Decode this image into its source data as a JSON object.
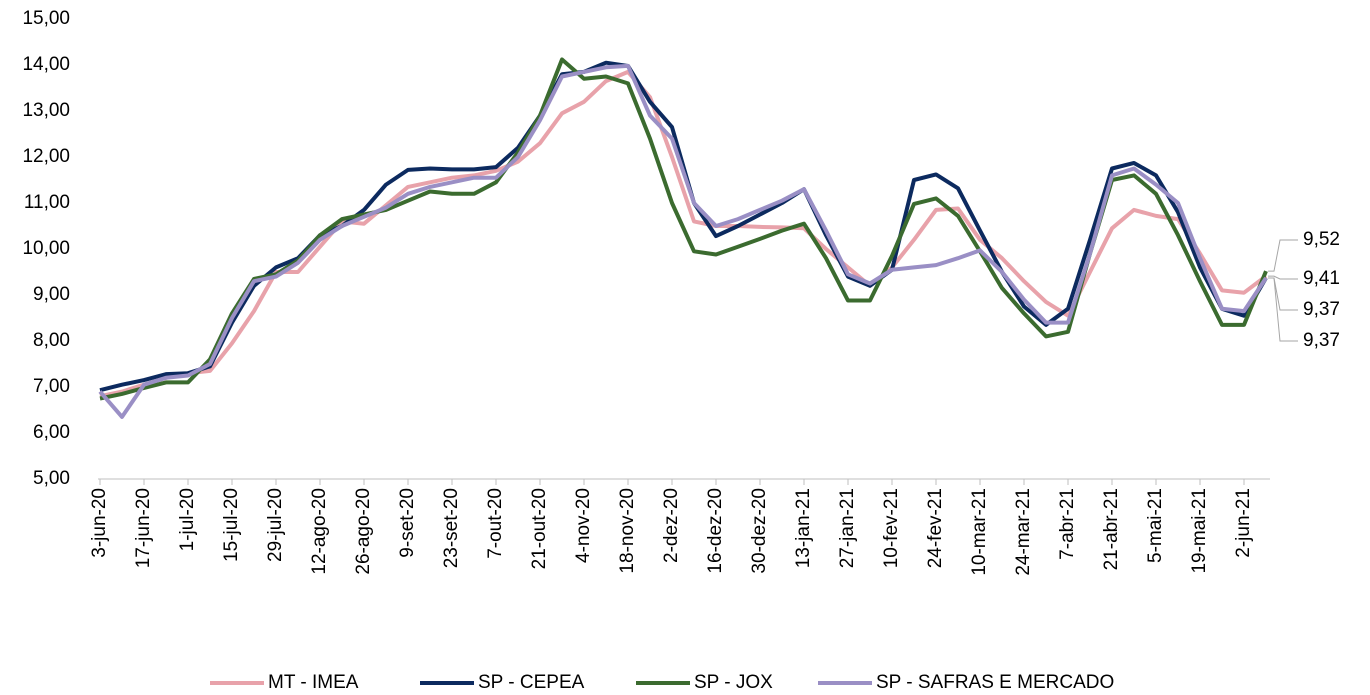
{
  "chart_data": {
    "type": "line",
    "categories": [
      "3-jun-20",
      null,
      "17-jun-20",
      null,
      "1-jul-20",
      null,
      "15-jul-20",
      null,
      "29-jul-20",
      null,
      "12-ago-20",
      null,
      "26-ago-20",
      null,
      "9-set-20",
      null,
      "23-set-20",
      null,
      "7-out-20",
      null,
      "21-out-20",
      null,
      "4-nov-20",
      null,
      "18-nov-20",
      null,
      "2-dez-20",
      null,
      "16-dez-20",
      null,
      "30-dez-20",
      null,
      "13-jan-21",
      null,
      "27-jan-21",
      null,
      "10-fev-21",
      null,
      "24-fev-21",
      null,
      "10-mar-21",
      null,
      "24-mar-21",
      null,
      "7-abr-21",
      null,
      "21-abr-21",
      null,
      "5-mai-21",
      null,
      "19-mai-21",
      null,
      "2-jun-21",
      null
    ],
    "series": [
      {
        "name": "MT - IMEA",
        "color": "#e8a2aa",
        "values": [
          6.8,
          6.9,
          7.05,
          7.2,
          7.3,
          7.35,
          7.95,
          8.65,
          9.5,
          9.5,
          10.05,
          10.6,
          10.55,
          10.95,
          11.35,
          11.45,
          11.55,
          11.6,
          11.7,
          11.9,
          12.3,
          12.95,
          13.2,
          13.65,
          13.85,
          13.3,
          12.0,
          10.6,
          10.5,
          10.5,
          10.48,
          10.47,
          10.45,
          10.0,
          9.6,
          9.2,
          9.6,
          10.2,
          10.85,
          10.88,
          10.2,
          9.8,
          9.3,
          8.85,
          8.55,
          9.5,
          10.45,
          10.85,
          10.72,
          10.65,
          9.9,
          9.1,
          9.05,
          9.41
        ],
        "value_labels": [
          null,
          null,
          null,
          null,
          null,
          null,
          null,
          null,
          null,
          null,
          null,
          null,
          null,
          null,
          null,
          null,
          null,
          null,
          null,
          null,
          null,
          null,
          null,
          null,
          null,
          null,
          null,
          null,
          null,
          null,
          null,
          null,
          null,
          null,
          null,
          null,
          null,
          null,
          null,
          null,
          null,
          null,
          null,
          null,
          null,
          null,
          null,
          null,
          null,
          null,
          null,
          null,
          null,
          "9,41"
        ]
      },
      {
        "name": "SP - CEPEA",
        "color": "#0c2a5f",
        "values": [
          6.93,
          7.05,
          7.15,
          7.28,
          7.3,
          7.45,
          8.4,
          9.2,
          9.6,
          9.8,
          10.3,
          10.5,
          10.85,
          11.4,
          11.72,
          11.75,
          11.73,
          11.73,
          11.78,
          12.2,
          12.9,
          13.8,
          13.85,
          14.05,
          13.98,
          13.2,
          12.65,
          11.0,
          10.28,
          10.5,
          10.75,
          11.0,
          11.3,
          10.3,
          9.4,
          9.2,
          9.55,
          11.5,
          11.62,
          11.32,
          10.4,
          9.5,
          8.75,
          8.35,
          8.7,
          10.2,
          11.75,
          11.87,
          11.6,
          10.8,
          9.6,
          8.7,
          8.55,
          9.37
        ],
        "value_labels": [
          null,
          null,
          null,
          null,
          null,
          null,
          null,
          null,
          null,
          null,
          null,
          null,
          null,
          null,
          null,
          null,
          null,
          null,
          null,
          null,
          null,
          null,
          null,
          null,
          null,
          null,
          null,
          null,
          null,
          null,
          null,
          null,
          null,
          null,
          null,
          null,
          null,
          null,
          null,
          null,
          null,
          null,
          null,
          null,
          null,
          null,
          null,
          null,
          null,
          null,
          null,
          null,
          null,
          "9,37"
        ]
      },
      {
        "name": "SP - JOX",
        "color": "#3b6b2f",
        "values": [
          6.75,
          6.85,
          6.98,
          7.1,
          7.1,
          7.6,
          8.6,
          9.35,
          9.45,
          9.75,
          10.3,
          10.65,
          10.75,
          10.85,
          11.05,
          11.25,
          11.2,
          11.2,
          11.45,
          12.1,
          12.9,
          14.12,
          13.7,
          13.75,
          13.6,
          12.4,
          11.0,
          9.95,
          9.88,
          10.05,
          10.22,
          10.4,
          10.55,
          9.8,
          8.88,
          8.88,
          9.85,
          10.98,
          11.1,
          10.72,
          9.95,
          9.15,
          8.6,
          8.1,
          8.2,
          9.9,
          11.5,
          11.6,
          11.2,
          10.3,
          9.3,
          8.35,
          8.35,
          9.52
        ],
        "value_labels": [
          null,
          null,
          null,
          null,
          null,
          null,
          null,
          null,
          null,
          null,
          null,
          null,
          null,
          null,
          null,
          null,
          null,
          null,
          null,
          null,
          null,
          null,
          null,
          null,
          null,
          null,
          null,
          null,
          null,
          null,
          null,
          null,
          null,
          null,
          null,
          null,
          null,
          null,
          null,
          null,
          null,
          null,
          null,
          null,
          null,
          null,
          null,
          null,
          null,
          null,
          null,
          null,
          null,
          "9,52"
        ]
      },
      {
        "name": "SP - SAFRAS E MERCADO",
        "color": "#9a8fc5",
        "values": [
          6.9,
          6.35,
          7.05,
          7.2,
          7.25,
          7.5,
          8.5,
          9.3,
          9.4,
          9.7,
          10.2,
          10.5,
          10.7,
          10.9,
          11.2,
          11.35,
          11.45,
          11.55,
          11.55,
          12.0,
          12.8,
          13.75,
          13.85,
          13.95,
          13.98,
          12.9,
          12.4,
          11.0,
          10.5,
          10.65,
          10.85,
          11.05,
          11.3,
          10.4,
          9.45,
          9.25,
          9.55,
          9.6,
          9.65,
          9.8,
          9.97,
          9.5,
          8.9,
          8.4,
          8.4,
          9.9,
          11.6,
          11.75,
          11.4,
          11.0,
          9.8,
          8.7,
          8.65,
          9.37
        ],
        "value_labels": [
          null,
          null,
          null,
          null,
          null,
          null,
          null,
          null,
          null,
          null,
          null,
          null,
          null,
          null,
          null,
          null,
          null,
          null,
          null,
          null,
          null,
          null,
          null,
          null,
          null,
          null,
          null,
          null,
          null,
          null,
          null,
          null,
          null,
          null,
          null,
          null,
          null,
          null,
          null,
          null,
          null,
          null,
          null,
          null,
          null,
          null,
          null,
          null,
          null,
          null,
          null,
          null,
          null,
          "9,37"
        ]
      }
    ],
    "ylim": [
      5,
      15
    ],
    "yticks": [
      {
        "value": 5,
        "label": "5,00"
      },
      {
        "value": 6,
        "label": "6,00"
      },
      {
        "value": 7,
        "label": "7,00"
      },
      {
        "value": 8,
        "label": "8,00"
      },
      {
        "value": 9,
        "label": "9,00"
      },
      {
        "value": 10,
        "label": "10,00"
      },
      {
        "value": 11,
        "label": "11,00"
      },
      {
        "value": 12,
        "label": "12,00"
      },
      {
        "value": 13,
        "label": "13,00"
      },
      {
        "value": 14,
        "label": "14,00"
      },
      {
        "value": 15,
        "label": "15,00"
      }
    ],
    "grid": false,
    "legend": "bottom"
  }
}
